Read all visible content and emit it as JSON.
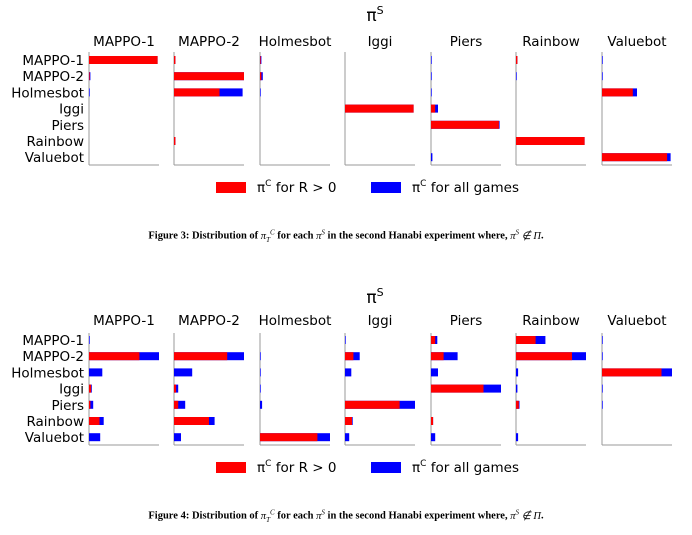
{
  "chart_data": [
    {
      "type": "bar",
      "orientation": "horizontal",
      "stacked": true,
      "title": "π^S",
      "panels": [
        "MAPPO-1",
        "MAPPO-2",
        "Holmesbot",
        "Iggi",
        "Piers",
        "Rainbow",
        "Valuebot"
      ],
      "categories": [
        "MAPPO-1",
        "MAPPO-2",
        "Holmesbot",
        "Iggi",
        "Piers",
        "Rainbow",
        "Valuebot"
      ],
      "xlim": [
        0,
        1
      ],
      "series": [
        {
          "name": "π^C for R > 0",
          "color": "#ff0000",
          "values": [
            [
              0.98,
              0.02,
              0.01,
              0.0,
              0.0,
              0.02,
              0.0
            ],
            [
              0.01,
              1.0,
              0.02,
              0.0,
              0.0,
              0.0,
              0.0
            ],
            [
              0.0,
              0.65,
              0.0,
              0.0,
              0.0,
              0.0,
              0.44
            ],
            [
              0.0,
              0.0,
              0.0,
              0.98,
              0.06,
              0.0,
              0.0
            ],
            [
              0.0,
              0.0,
              0.0,
              0.0,
              0.97,
              0.0,
              0.0
            ],
            [
              0.0,
              0.02,
              0.0,
              0.0,
              0.0,
              0.98,
              0.0
            ],
            [
              0.0,
              0.0,
              0.0,
              0.0,
              0.0,
              0.0,
              0.93
            ]
          ]
        },
        {
          "name": "π^C for all games",
          "color": "#0000ff",
          "values": [
            [
              0.98,
              0.02,
              0.02,
              0.0,
              0.01,
              0.02,
              0.01
            ],
            [
              0.02,
              1.0,
              0.04,
              0.0,
              0.01,
              0.01,
              0.01
            ],
            [
              0.01,
              0.98,
              0.01,
              0.0,
              0.01,
              0.0,
              0.5
            ],
            [
              0.0,
              0.0,
              0.0,
              0.98,
              0.1,
              0.0,
              0.0
            ],
            [
              0.0,
              0.0,
              0.0,
              0.0,
              0.98,
              0.0,
              0.0
            ],
            [
              0.0,
              0.02,
              0.0,
              0.0,
              0.0,
              0.98,
              0.0
            ],
            [
              0.0,
              0.0,
              0.0,
              0.0,
              0.02,
              0.0,
              0.98
            ]
          ]
        }
      ]
    },
    {
      "type": "bar",
      "orientation": "horizontal",
      "stacked": true,
      "title": "π^S",
      "panels": [
        "MAPPO-1",
        "MAPPO-2",
        "Holmesbot",
        "Iggi",
        "Piers",
        "Rainbow",
        "Valuebot"
      ],
      "categories": [
        "MAPPO-1",
        "MAPPO-2",
        "Holmesbot",
        "Iggi",
        "Piers",
        "Rainbow",
        "Valuebot"
      ],
      "xlim": [
        0,
        1
      ],
      "series": [
        {
          "name": "π^C for R > 0",
          "color": "#ff0000",
          "values": [
            [
              0.0,
              0.0,
              0.0,
              0.0,
              0.06,
              0.28,
              0.0
            ],
            [
              0.72,
              0.76,
              0.0,
              0.12,
              0.18,
              0.8,
              0.0
            ],
            [
              0.0,
              0.0,
              0.0,
              0.0,
              0.0,
              0.0,
              0.85
            ],
            [
              0.03,
              0.03,
              0.0,
              0.0,
              0.75,
              0.0,
              0.0
            ],
            [
              0.02,
              0.06,
              0.0,
              0.78,
              0.0,
              0.04,
              0.0
            ],
            [
              0.15,
              0.5,
              0.0,
              0.1,
              0.03,
              0.0,
              0.0
            ],
            [
              0.0,
              0.0,
              0.82,
              0.0,
              0.0,
              0.0,
              0.0
            ]
          ]
        },
        {
          "name": "π^C for all games",
          "color": "#0000ff",
          "values": [
            [
              0.01,
              0.0,
              0.0,
              0.01,
              0.09,
              0.42,
              0.01
            ],
            [
              1.0,
              1.0,
              0.01,
              0.21,
              0.38,
              1.0,
              0.01
            ],
            [
              0.19,
              0.26,
              0.01,
              0.09,
              0.1,
              0.03,
              1.0
            ],
            [
              0.04,
              0.06,
              0.01,
              0.0,
              1.0,
              0.02,
              0.01
            ],
            [
              0.06,
              0.16,
              0.03,
              1.0,
              0.0,
              0.05,
              0.01
            ],
            [
              0.21,
              0.58,
              0.0,
              0.11,
              0.03,
              0.0,
              0.0
            ],
            [
              0.16,
              0.1,
              1.0,
              0.06,
              0.06,
              0.03,
              0.0
            ]
          ]
        }
      ]
    }
  ],
  "legend": {
    "red_label": "for R > 0",
    "blue_label": "for all games"
  },
  "captions": [
    {
      "figure": "Figure 3:",
      "text": "Distribution of π_T^C for each π^S in the second Hanabi experiment where, π^S ∉ Π."
    },
    {
      "figure": "Figure 4:",
      "text": "Distribution of π_T^C for each π^S in the second Hanabi experiment where, π^S ∉ Π."
    }
  ]
}
